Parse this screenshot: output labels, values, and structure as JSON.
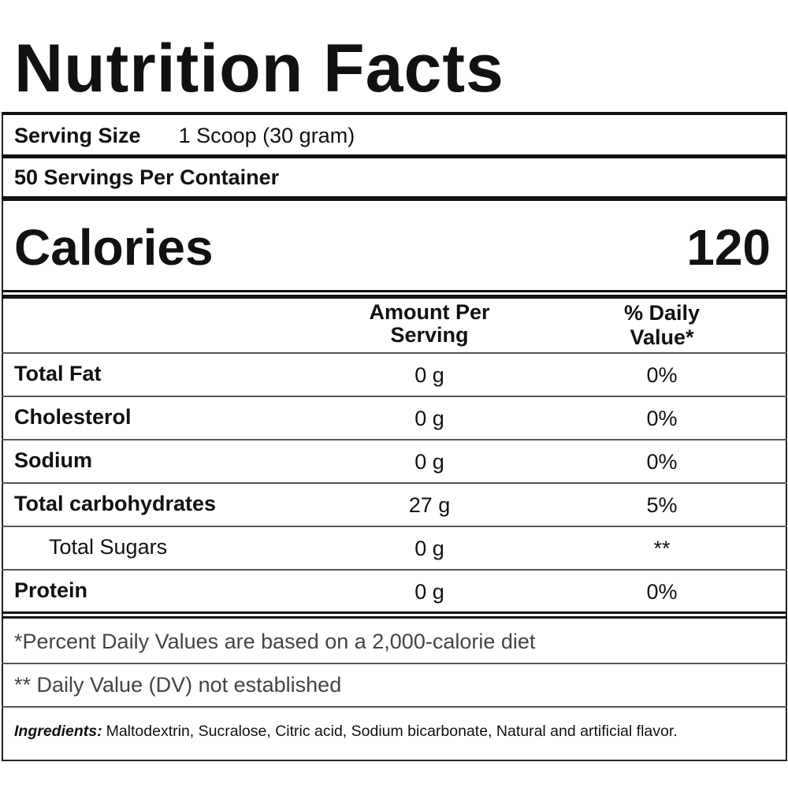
{
  "header": {
    "title": "Nutrition Facts"
  },
  "serving": {
    "label": "Serving Size",
    "value": "1 Scoop (30 gram)",
    "per_container": "50 Servings Per Container"
  },
  "calories": {
    "label": "Calories",
    "value": 120
  },
  "table": {
    "columns": [
      "Amount Per Serving",
      "% Daily Value*"
    ],
    "rows": [
      [
        "Total Fat",
        "0 g",
        "0%"
      ],
      [
        "Cholesterol",
        "0 g",
        "0%"
      ],
      [
        "Sodium",
        "0 g",
        "0%"
      ],
      [
        "Total carbohydrates",
        "27 g",
        "5%"
      ],
      [
        "Total Sugars",
        "0 g",
        "**"
      ],
      [
        "Protein",
        "0 g",
        "0%"
      ]
    ]
  },
  "footnotes": [
    "*Percent Daily Values are based on a 2,000-calorie diet",
    "** Daily Value (DV) not established"
  ],
  "ingredients": {
    "label": "Ingredients:",
    "text": "Maltodextrin, Sucralose, Citric acid, Sodium bicarbonate, Natural and artificial flavor."
  }
}
